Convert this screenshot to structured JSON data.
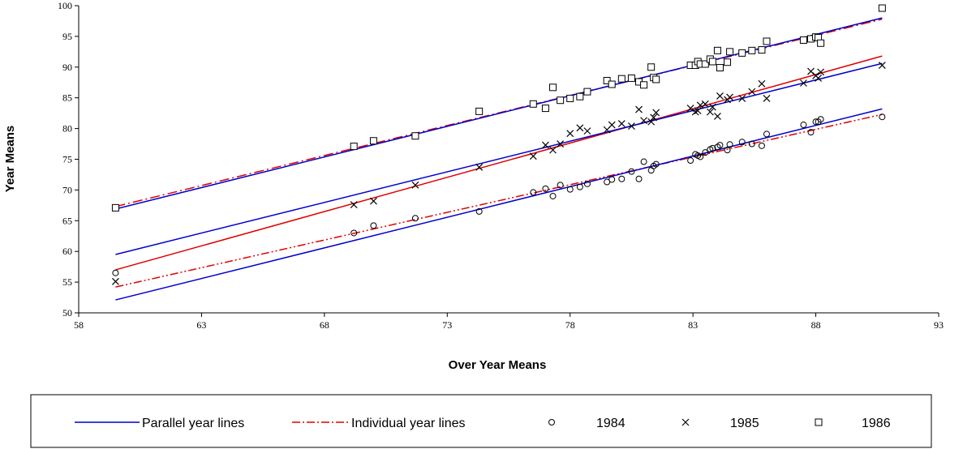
{
  "chart_data": {
    "type": "scatter",
    "title": "",
    "xlabel": "Over Year Means",
    "ylabel": "Year Means",
    "xlim": [
      58,
      93
    ],
    "ylim": [
      50,
      100
    ],
    "xticks": [
      58,
      63,
      68,
      73,
      78,
      83,
      88,
      93
    ],
    "yticks": [
      50,
      55,
      60,
      65,
      70,
      75,
      80,
      85,
      90,
      95,
      100
    ],
    "grid": false,
    "legend_position": "bottom",
    "legend": {
      "parallel": "Parallel year lines",
      "individual": "Individual year lines",
      "s1984": "1984",
      "s1985": "1985",
      "s1986": "1986"
    },
    "colors": {
      "parallel": "#0000cc",
      "individual": "#e00000",
      "markers": "#000000"
    },
    "x": [
      59.5,
      69.2,
      70.0,
      71.7,
      74.3,
      76.5,
      77.0,
      77.3,
      77.6,
      78.0,
      78.4,
      78.7,
      79.5,
      79.7,
      80.1,
      80.5,
      80.8,
      81.0,
      81.3,
      81.4,
      81.5,
      82.9,
      83.1,
      83.2,
      83.3,
      83.5,
      83.7,
      83.8,
      84.0,
      84.1,
      84.4,
      84.5,
      85.0,
      85.4,
      85.8,
      86.0,
      87.5,
      87.8,
      88.0,
      88.1,
      88.2,
      90.7
    ],
    "series": [
      {
        "name": "1984",
        "marker": "circle",
        "values": [
          56.5,
          63.0,
          64.2,
          65.4,
          66.5,
          69.6,
          70.2,
          69.0,
          70.8,
          70.1,
          70.5,
          71.0,
          71.3,
          71.7,
          71.8,
          73.0,
          71.8,
          74.6,
          73.2,
          73.9,
          74.2,
          74.8,
          75.8,
          75.6,
          75.4,
          76.1,
          76.6,
          76.8,
          77.0,
          77.3,
          76.5,
          77.4,
          77.8,
          77.5,
          77.2,
          79.1,
          80.6,
          79.4,
          81.1,
          81.1,
          81.5,
          81.9
        ]
      },
      {
        "name": "1985",
        "marker": "x",
        "values": [
          55.1,
          67.6,
          68.2,
          70.8,
          73.7,
          75.5,
          77.3,
          76.5,
          77.5,
          79.2,
          80.1,
          79.6,
          79.8,
          80.6,
          80.8,
          80.4,
          83.1,
          81.3,
          81.1,
          81.8,
          82.6,
          83.3,
          82.7,
          82.9,
          83.8,
          84.0,
          82.7,
          83.5,
          82.0,
          85.3,
          84.7,
          85.1,
          84.9,
          86.0,
          87.3,
          84.9,
          87.4,
          89.3,
          88.6,
          88.2,
          89.2,
          90.3
        ]
      },
      {
        "name": "1986",
        "marker": "square",
        "values": [
          67.1,
          77.1,
          78.0,
          78.8,
          82.8,
          84.0,
          83.3,
          86.7,
          84.6,
          84.9,
          85.2,
          86.0,
          87.8,
          87.2,
          88.1,
          88.2,
          87.6,
          87.1,
          90.0,
          88.3,
          88.0,
          90.3,
          90.3,
          90.9,
          90.5,
          90.5,
          91.3,
          90.9,
          92.7,
          89.9,
          90.8,
          92.5,
          92.3,
          92.7,
          92.8,
          94.2,
          94.4,
          94.6,
          94.9,
          94.8,
          93.9,
          99.6
        ]
      }
    ],
    "fit_lines": [
      {
        "year": "1984",
        "kind": "parallel",
        "x": [
          59.5,
          90.7
        ],
        "y": [
          52.1,
          83.2
        ]
      },
      {
        "year": "1985",
        "kind": "parallel",
        "x": [
          59.5,
          90.7
        ],
        "y": [
          59.5,
          90.6
        ]
      },
      {
        "year": "1986",
        "kind": "parallel",
        "x": [
          59.5,
          90.7
        ],
        "y": [
          66.9,
          98.0
        ]
      },
      {
        "year": "1984",
        "kind": "individual",
        "x": [
          59.5,
          90.7
        ],
        "y": [
          54.2,
          82.3
        ]
      },
      {
        "year": "1985",
        "kind": "individual",
        "x": [
          59.5,
          90.7
        ],
        "y": [
          57.0,
          91.8
        ]
      },
      {
        "year": "1986",
        "kind": "individual",
        "x": [
          59.5,
          90.7
        ],
        "y": [
          67.3,
          97.8
        ]
      }
    ]
  }
}
